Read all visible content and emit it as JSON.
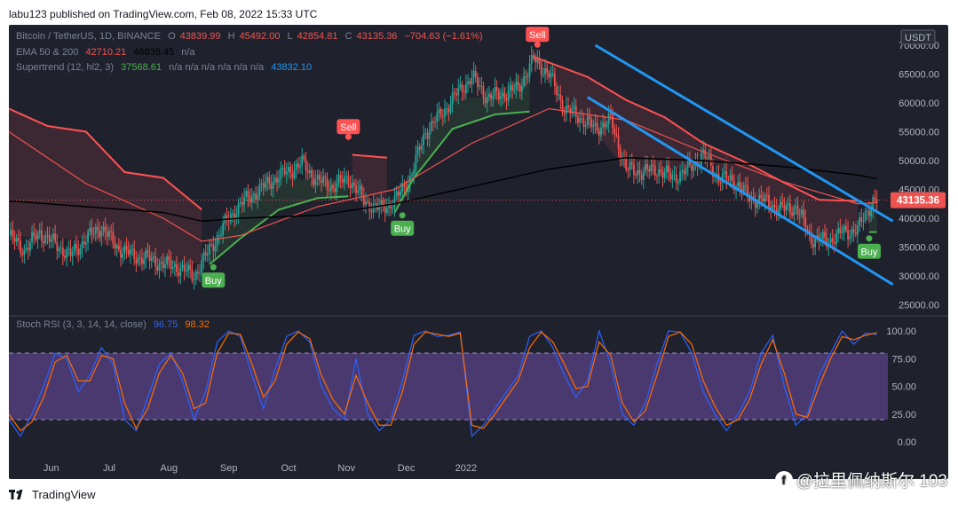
{
  "header": {
    "text": "labu123 published on TradingView.com, Feb 08, 2022 15:33 UTC"
  },
  "legend": {
    "symbol": "Bitcoin / TetherUS, 1D, BINANCE",
    "o_label": "O",
    "o": "43839.99",
    "h_label": "H",
    "h": "45492.00",
    "l_label": "L",
    "l": "42854.81",
    "c_label": "C",
    "c": "43135.36",
    "change": "−704.63 (−1.61%)",
    "ema_label": "EMA 50 & 200",
    "ema50": "42710.21",
    "ema200": "46838.45",
    "ema_na": "n/a",
    "st_label": "Supertrend (12, hl2, 3)",
    "st_value": "37568.61",
    "st_na": "n/a n/a n/a n/a n/a n/a",
    "st_value2": "43832.10",
    "rsi_label": "Stoch RSI (3, 3, 14, 14, close)",
    "rsi_k": "96.75",
    "rsi_d": "98.32"
  },
  "currency_label": "USDT",
  "price_tag": "43135.36",
  "signals": {
    "sell": "Sell",
    "buy": "Buy"
  },
  "footer": {
    "brand": "TradingView"
  },
  "watermark": {
    "text": "@拉里佩纳斯尔 103"
  },
  "colors": {
    "background": "#1f222d",
    "up": "#26a69a",
    "down": "#ef5350",
    "ema50": "#ef5350",
    "ema200": "#000000",
    "supertrend_up": "#4caf50",
    "supertrend_down": "#ff5252",
    "channel": "#2196f3",
    "stoch_k": "#2962ff",
    "stoch_d": "#ff6d00",
    "rsi_band": "#7e57c2"
  },
  "chart_data": [
    {
      "type": "candlestick",
      "title": "Bitcoin / TetherUS, 1D, BINANCE",
      "x_ticks": [
        "Jun",
        "Jul",
        "Aug",
        "Sep",
        "Oct",
        "Nov",
        "Dec",
        "2022"
      ],
      "y_ticks": [
        25000,
        30000,
        35000,
        40000,
        45000,
        50000,
        55000,
        60000,
        65000,
        70000
      ],
      "ylim": [
        24000,
        72000
      ],
      "last_price": 43135.36,
      "close_path": [
        [
          0,
          37000
        ],
        [
          8,
          34500
        ],
        [
          16,
          37500
        ],
        [
          24,
          35500
        ],
        [
          32,
          33500
        ],
        [
          40,
          36500
        ],
        [
          48,
          38500
        ],
        [
          56,
          35000
        ],
        [
          64,
          33500
        ],
        [
          72,
          33000
        ],
        [
          80,
          32000
        ],
        [
          88,
          31500
        ],
        [
          96,
          30000
        ],
        [
          104,
          34500
        ],
        [
          112,
          39000
        ],
        [
          120,
          42500
        ],
        [
          128,
          44500
        ],
        [
          136,
          46500
        ],
        [
          144,
          48000
        ],
        [
          152,
          49500
        ],
        [
          160,
          46500
        ],
        [
          168,
          45500
        ],
        [
          176,
          47000
        ],
        [
          184,
          43000
        ],
        [
          192,
          41500
        ],
        [
          200,
          43000
        ],
        [
          208,
          47000
        ],
        [
          216,
          55000
        ],
        [
          224,
          58000
        ],
        [
          232,
          61500
        ],
        [
          240,
          64500
        ],
        [
          248,
          61000
        ],
        [
          256,
          61500
        ],
        [
          264,
          62500
        ],
        [
          272,
          67500
        ],
        [
          280,
          65000
        ],
        [
          288,
          59000
        ],
        [
          296,
          57500
        ],
        [
          304,
          55500
        ],
        [
          312,
          57000
        ],
        [
          320,
          48500
        ],
        [
          328,
          48000
        ],
        [
          336,
          48500
        ],
        [
          344,
          47000
        ],
        [
          352,
          48500
        ],
        [
          360,
          51000
        ],
        [
          368,
          47000
        ],
        [
          376,
          46500
        ],
        [
          384,
          43500
        ],
        [
          392,
          43000
        ],
        [
          400,
          41500
        ],
        [
          408,
          42000
        ],
        [
          416,
          36500
        ],
        [
          424,
          36000
        ],
        [
          432,
          37500
        ],
        [
          440,
          38000
        ],
        [
          448,
          43135
        ]
      ],
      "supertrend": [
        [
          0,
          59000,
          "down"
        ],
        [
          20,
          56000,
          "down"
        ],
        [
          40,
          55000,
          "down"
        ],
        [
          60,
          48000,
          "down"
        ],
        [
          80,
          47000,
          "down"
        ],
        [
          100,
          41500,
          "down"
        ],
        [
          104,
          32000,
          "up"
        ],
        [
          120,
          36500,
          "up"
        ],
        [
          140,
          41500,
          "up"
        ],
        [
          160,
          43500,
          "up"
        ],
        [
          176,
          43800,
          "up"
        ],
        [
          178,
          51000,
          "down"
        ],
        [
          196,
          50500,
          "down"
        ],
        [
          200,
          41000,
          "up"
        ],
        [
          210,
          47000,
          "up"
        ],
        [
          230,
          55500,
          "up"
        ],
        [
          252,
          58000,
          "up"
        ],
        [
          270,
          58500,
          "up"
        ],
        [
          272,
          68000,
          "down"
        ],
        [
          300,
          64500,
          "down"
        ],
        [
          320,
          60500,
          "down"
        ],
        [
          340,
          57500,
          "down"
        ],
        [
          360,
          53000,
          "down"
        ],
        [
          380,
          50000,
          "down"
        ],
        [
          400,
          46500,
          "down"
        ],
        [
          420,
          43200,
          "down"
        ],
        [
          440,
          43000,
          "down"
        ],
        [
          446,
          37600,
          "up"
        ],
        [
          450,
          37600,
          "up"
        ]
      ],
      "ema50": [
        [
          0,
          55000
        ],
        [
          40,
          46000
        ],
        [
          80,
          40000
        ],
        [
          100,
          36000
        ],
        [
          120,
          37000
        ],
        [
          160,
          42000
        ],
        [
          200,
          45000
        ],
        [
          240,
          53000
        ],
        [
          280,
          59000
        ],
        [
          320,
          57000
        ],
        [
          360,
          51500
        ],
        [
          400,
          46500
        ],
        [
          440,
          42500
        ],
        [
          450,
          42710
        ]
      ],
      "ema200": [
        [
          0,
          43000
        ],
        [
          40,
          42000
        ],
        [
          80,
          41000
        ],
        [
          100,
          39500
        ],
        [
          120,
          40000
        ],
        [
          160,
          40500
        ],
        [
          200,
          42500
        ],
        [
          240,
          45500
        ],
        [
          280,
          48500
        ],
        [
          320,
          50500
        ],
        [
          360,
          50000
        ],
        [
          400,
          49000
        ],
        [
          440,
          47500
        ],
        [
          450,
          46838
        ]
      ],
      "channel": {
        "upper": [
          [
            304,
            70000
          ],
          [
            450,
            39500
          ]
        ],
        "lower": [
          [
            300,
            61000
          ],
          [
            450,
            28500
          ]
        ]
      },
      "signals": [
        {
          "label": "Sell",
          "x": 176,
          "price": 53500
        },
        {
          "label": "Buy",
          "x": 106,
          "price": 31500
        },
        {
          "label": "Buy",
          "x": 204,
          "price": 40500
        },
        {
          "label": "Sell",
          "x": 274,
          "price": 69500
        },
        {
          "label": "Buy",
          "x": 446,
          "price": 36500
        }
      ]
    },
    {
      "type": "line",
      "title": "Stoch RSI (3, 3, 14, 14, close)",
      "y_ticks": [
        0,
        25,
        50,
        75,
        100
      ],
      "ylim": [
        -8,
        108
      ],
      "band": [
        20,
        80
      ],
      "series": [
        {
          "name": "K",
          "last": 96.75,
          "path": [
            [
              0,
              20
            ],
            [
              6,
              5
            ],
            [
              12,
              25
            ],
            [
              18,
              50
            ],
            [
              24,
              80
            ],
            [
              30,
              75
            ],
            [
              36,
              45
            ],
            [
              42,
              60
            ],
            [
              48,
              85
            ],
            [
              54,
              70
            ],
            [
              60,
              20
            ],
            [
              66,
              10
            ],
            [
              72,
              40
            ],
            [
              78,
              70
            ],
            [
              84,
              80
            ],
            [
              90,
              55
            ],
            [
              96,
              20
            ],
            [
              102,
              45
            ],
            [
              108,
              90
            ],
            [
              114,
              100
            ],
            [
              120,
              95
            ],
            [
              126,
              60
            ],
            [
              132,
              30
            ],
            [
              138,
              65
            ],
            [
              144,
              95
            ],
            [
              150,
              100
            ],
            [
              156,
              90
            ],
            [
              162,
              50
            ],
            [
              168,
              30
            ],
            [
              174,
              20
            ],
            [
              180,
              75
            ],
            [
              186,
              25
            ],
            [
              192,
              10
            ],
            [
              198,
              20
            ],
            [
              204,
              55
            ],
            [
              210,
              96
            ],
            [
              216,
              100
            ],
            [
              222,
              95
            ],
            [
              228,
              96
            ],
            [
              234,
              99
            ],
            [
              240,
              5
            ],
            [
              246,
              15
            ],
            [
              252,
              30
            ],
            [
              258,
              45
            ],
            [
              264,
              60
            ],
            [
              270,
              95
            ],
            [
              276,
              100
            ],
            [
              282,
              85
            ],
            [
              288,
              60
            ],
            [
              294,
              40
            ],
            [
              300,
              55
            ],
            [
              306,
              100
            ],
            [
              312,
              70
            ],
            [
              318,
              25
            ],
            [
              324,
              15
            ],
            [
              330,
              35
            ],
            [
              336,
              70
            ],
            [
              342,
              100
            ],
            [
              348,
              99
            ],
            [
              354,
              80
            ],
            [
              360,
              45
            ],
            [
              366,
              25
            ],
            [
              372,
              10
            ],
            [
              378,
              25
            ],
            [
              384,
              45
            ],
            [
              390,
              80
            ],
            [
              396,
              96
            ],
            [
              402,
              50
            ],
            [
              408,
              15
            ],
            [
              414,
              25
            ],
            [
              420,
              60
            ],
            [
              426,
              80
            ],
            [
              432,
              100
            ],
            [
              438,
              88
            ],
            [
              444,
              98
            ],
            [
              450,
              96.75
            ]
          ]
        },
        {
          "name": "D",
          "last": 98.32,
          "path": [
            [
              0,
              25
            ],
            [
              6,
              10
            ],
            [
              12,
              18
            ],
            [
              18,
              40
            ],
            [
              24,
              72
            ],
            [
              30,
              78
            ],
            [
              36,
              55
            ],
            [
              42,
              55
            ],
            [
              48,
              78
            ],
            [
              54,
              75
            ],
            [
              60,
              35
            ],
            [
              66,
              12
            ],
            [
              72,
              30
            ],
            [
              78,
              62
            ],
            [
              84,
              78
            ],
            [
              90,
              62
            ],
            [
              96,
              30
            ],
            [
              102,
              35
            ],
            [
              108,
              80
            ],
            [
              114,
              98
            ],
            [
              120,
              97
            ],
            [
              126,
              70
            ],
            [
              132,
              40
            ],
            [
              138,
              55
            ],
            [
              144,
              88
            ],
            [
              150,
              99
            ],
            [
              156,
              93
            ],
            [
              162,
              60
            ],
            [
              168,
              38
            ],
            [
              174,
              25
            ],
            [
              180,
              60
            ],
            [
              186,
              35
            ],
            [
              192,
              15
            ],
            [
              198,
              15
            ],
            [
              204,
              45
            ],
            [
              210,
              88
            ],
            [
              216,
              99
            ],
            [
              222,
              97
            ],
            [
              228,
              95
            ],
            [
              234,
              98
            ],
            [
              240,
              15
            ],
            [
              246,
              12
            ],
            [
              252,
              25
            ],
            [
              258,
              40
            ],
            [
              264,
              55
            ],
            [
              270,
              85
            ],
            [
              276,
              99
            ],
            [
              282,
              90
            ],
            [
              288,
              70
            ],
            [
              294,
              48
            ],
            [
              300,
              50
            ],
            [
              306,
              90
            ],
            [
              312,
              78
            ],
            [
              318,
              35
            ],
            [
              324,
              18
            ],
            [
              330,
              28
            ],
            [
              336,
              60
            ],
            [
              342,
              95
            ],
            [
              348,
              99
            ],
            [
              354,
              88
            ],
            [
              360,
              55
            ],
            [
              366,
              32
            ],
            [
              372,
              15
            ],
            [
              378,
              20
            ],
            [
              384,
              38
            ],
            [
              390,
              70
            ],
            [
              396,
              92
            ],
            [
              402,
              62
            ],
            [
              408,
              25
            ],
            [
              414,
              22
            ],
            [
              420,
              50
            ],
            [
              426,
              75
            ],
            [
              432,
              95
            ],
            [
              438,
              92
            ],
            [
              444,
              96
            ],
            [
              450,
              98.32
            ]
          ]
        }
      ]
    }
  ]
}
